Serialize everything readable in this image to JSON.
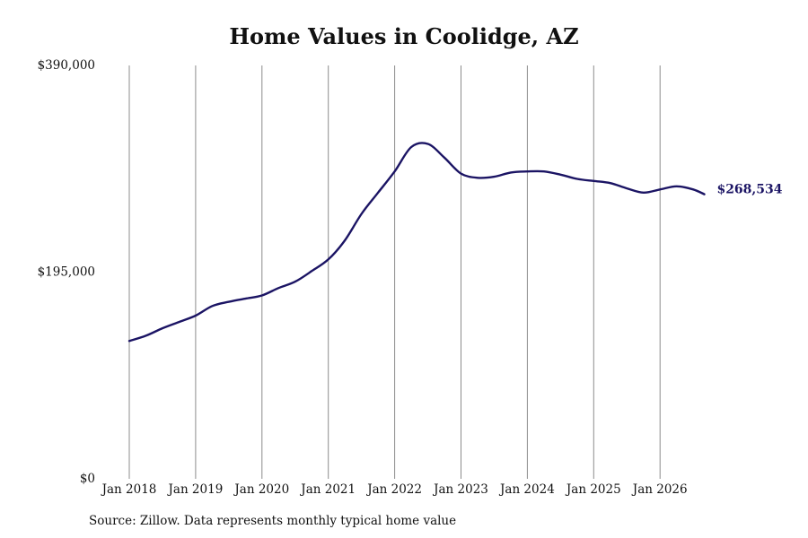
{
  "chart_data": {
    "type": "line",
    "title": "Home Values in Coolidge, AZ",
    "xlabel": "",
    "ylabel": "",
    "ylim": [
      0,
      390000
    ],
    "y_ticks": [
      {
        "value": 0,
        "label": "$0"
      },
      {
        "value": 195000,
        "label": "$195,000"
      },
      {
        "value": 390000,
        "label": "$390,000"
      }
    ],
    "x_ticks": [
      "Jan 2018",
      "Jan 2019",
      "Jan 2020",
      "Jan 2021",
      "Jan 2022",
      "Jan 2023",
      "Jan 2024",
      "Jan 2025",
      "Jan 2026"
    ],
    "grid": "vertical",
    "line_color": "#1b1464",
    "end_label": "$268,534",
    "series": [
      {
        "points": [
          [
            "2018-01",
            130000
          ],
          [
            "2018-04",
            135000
          ],
          [
            "2018-07",
            142000
          ],
          [
            "2018-10",
            148000
          ],
          [
            "2019-01",
            154000
          ],
          [
            "2019-04",
            163000
          ],
          [
            "2019-07",
            167000
          ],
          [
            "2019-10",
            170000
          ],
          [
            "2020-01",
            173000
          ],
          [
            "2020-04",
            180000
          ],
          [
            "2020-07",
            186000
          ],
          [
            "2020-10",
            196000
          ],
          [
            "2021-01",
            207000
          ],
          [
            "2021-04",
            225000
          ],
          [
            "2021-07",
            250000
          ],
          [
            "2021-10",
            270000
          ],
          [
            "2022-01",
            290000
          ],
          [
            "2022-04",
            313000
          ],
          [
            "2022-07",
            316000
          ],
          [
            "2022-10",
            303000
          ],
          [
            "2023-01",
            288000
          ],
          [
            "2023-04",
            284000
          ],
          [
            "2023-07",
            285000
          ],
          [
            "2023-10",
            289000
          ],
          [
            "2024-01",
            290000
          ],
          [
            "2024-04",
            290000
          ],
          [
            "2024-07",
            287000
          ],
          [
            "2024-10",
            283000
          ],
          [
            "2025-01",
            281000
          ],
          [
            "2025-04",
            279000
          ],
          [
            "2025-07",
            274000
          ],
          [
            "2025-10",
            270000
          ],
          [
            "2026-01",
            273000
          ],
          [
            "2026-04",
            276000
          ],
          [
            "2026-07",
            273000
          ],
          [
            "2026-09",
            268534
          ]
        ]
      }
    ]
  },
  "source_note": "Source: Zillow. Data represents monthly typical home value"
}
